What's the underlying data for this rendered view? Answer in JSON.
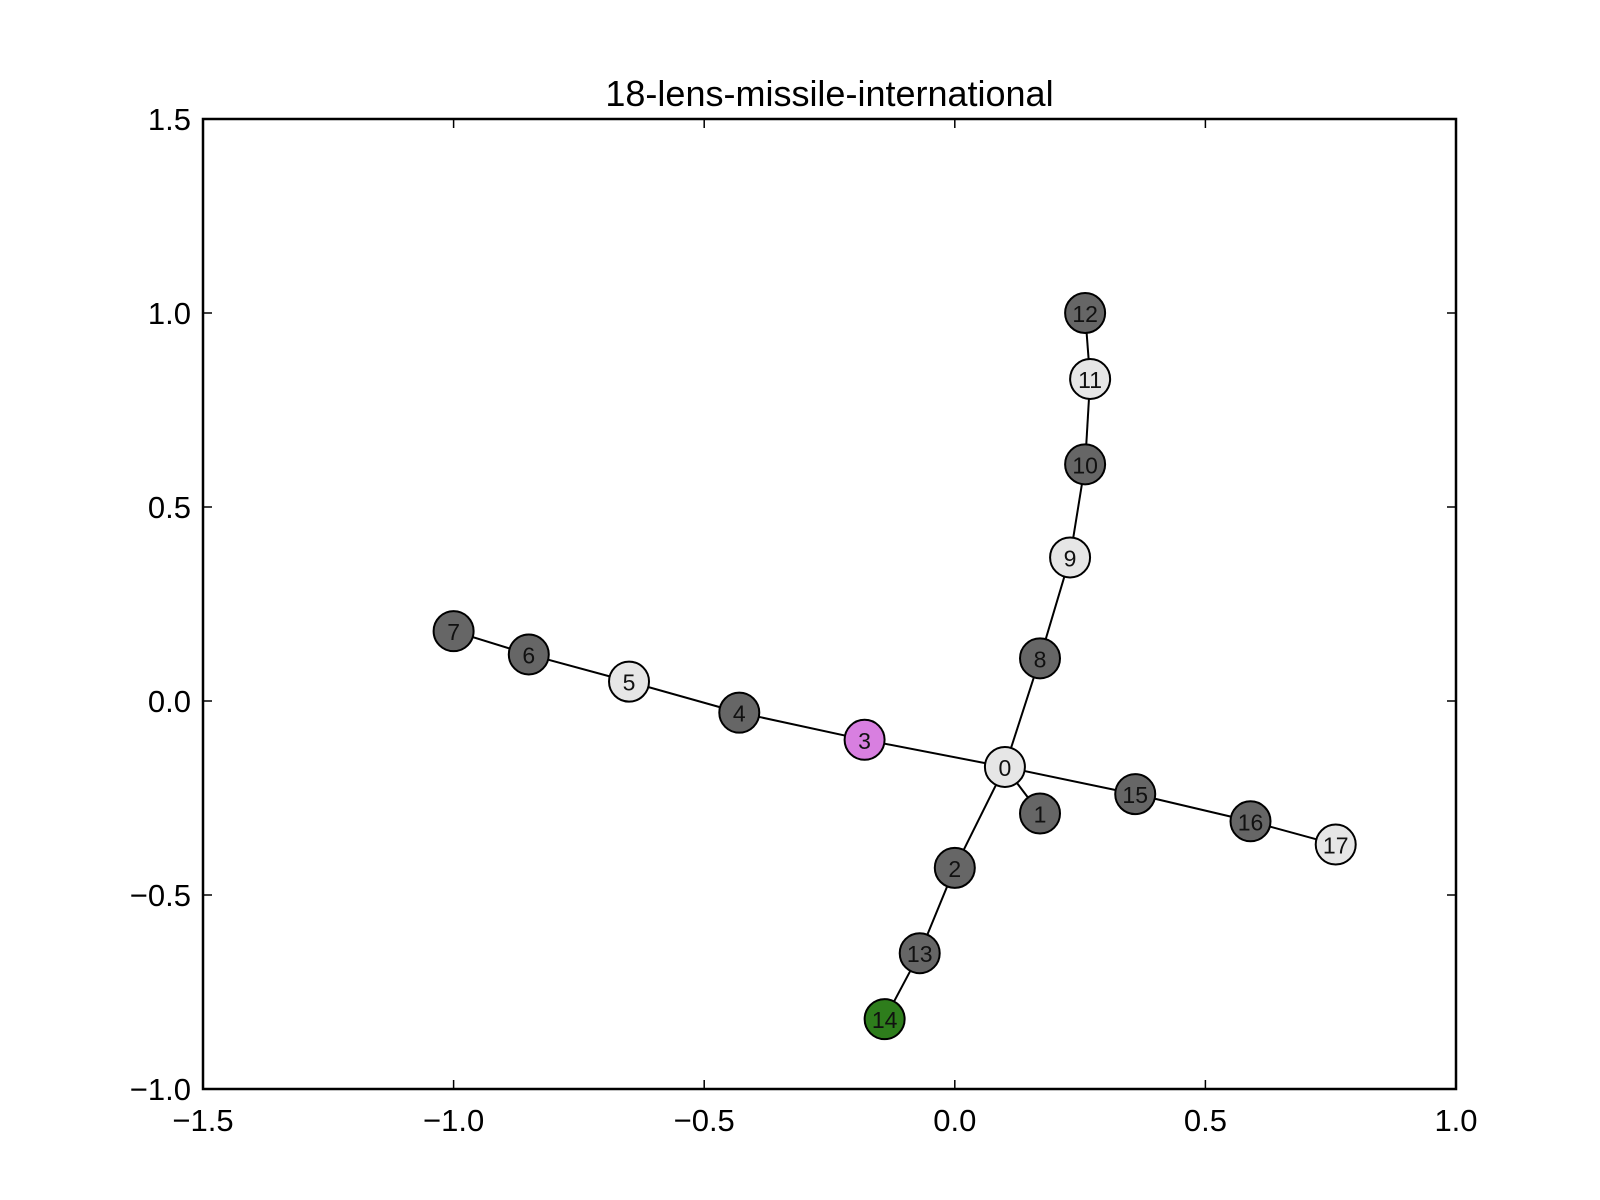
{
  "chart_data": {
    "type": "scatter",
    "title": "18-lens-missile-international",
    "xlabel": "",
    "ylabel": "",
    "xlim": [
      -1.5,
      1.0
    ],
    "ylim": [
      -1.0,
      1.5
    ],
    "xticks": [
      -1.5,
      -1.0,
      -0.5,
      0.0,
      0.5,
      1.0
    ],
    "yticks": [
      -1.0,
      -0.5,
      0.0,
      0.5,
      1.0,
      1.5
    ],
    "xtick_labels": [
      "−1.5",
      "−1.0",
      "−0.5",
      "0.0",
      "0.5",
      "1.0"
    ],
    "ytick_labels": [
      "−1.0",
      "−0.5",
      "0.0",
      "0.5",
      "1.0",
      "1.5"
    ],
    "grid": false,
    "colors": {
      "dark": "#666666",
      "light": "#e6e6e6",
      "pink": "#d87fe0",
      "green": "#2e7d1c",
      "edge": "#000000"
    },
    "nodes": [
      {
        "id": "0",
        "x": 0.1,
        "y": -0.17,
        "color": "light"
      },
      {
        "id": "1",
        "x": 0.17,
        "y": -0.29,
        "color": "dark"
      },
      {
        "id": "2",
        "x": 0.0,
        "y": -0.43,
        "color": "dark"
      },
      {
        "id": "3",
        "x": -0.18,
        "y": -0.1,
        "color": "pink"
      },
      {
        "id": "4",
        "x": -0.43,
        "y": -0.03,
        "color": "dark"
      },
      {
        "id": "5",
        "x": -0.65,
        "y": 0.05,
        "color": "light"
      },
      {
        "id": "6",
        "x": -0.85,
        "y": 0.12,
        "color": "dark"
      },
      {
        "id": "7",
        "x": -1.0,
        "y": 0.18,
        "color": "dark"
      },
      {
        "id": "8",
        "x": 0.17,
        "y": 0.11,
        "color": "dark"
      },
      {
        "id": "9",
        "x": 0.23,
        "y": 0.37,
        "color": "light"
      },
      {
        "id": "10",
        "x": 0.26,
        "y": 0.61,
        "color": "dark"
      },
      {
        "id": "11",
        "x": 0.27,
        "y": 0.83,
        "color": "light"
      },
      {
        "id": "12",
        "x": 0.26,
        "y": 1.0,
        "color": "dark"
      },
      {
        "id": "13",
        "x": -0.07,
        "y": -0.65,
        "color": "dark"
      },
      {
        "id": "14",
        "x": -0.14,
        "y": -0.82,
        "color": "green"
      },
      {
        "id": "15",
        "x": 0.36,
        "y": -0.24,
        "color": "dark"
      },
      {
        "id": "16",
        "x": 0.59,
        "y": -0.31,
        "color": "dark"
      },
      {
        "id": "17",
        "x": 0.76,
        "y": -0.37,
        "color": "light"
      }
    ],
    "edges": [
      [
        "0",
        "1"
      ],
      [
        "0",
        "2"
      ],
      [
        "0",
        "3"
      ],
      [
        "0",
        "8"
      ],
      [
        "0",
        "15"
      ],
      [
        "3",
        "4"
      ],
      [
        "4",
        "5"
      ],
      [
        "5",
        "6"
      ],
      [
        "6",
        "7"
      ],
      [
        "8",
        "9"
      ],
      [
        "9",
        "10"
      ],
      [
        "10",
        "11"
      ],
      [
        "11",
        "12"
      ],
      [
        "2",
        "13"
      ],
      [
        "13",
        "14"
      ],
      [
        "15",
        "16"
      ],
      [
        "16",
        "17"
      ]
    ]
  }
}
